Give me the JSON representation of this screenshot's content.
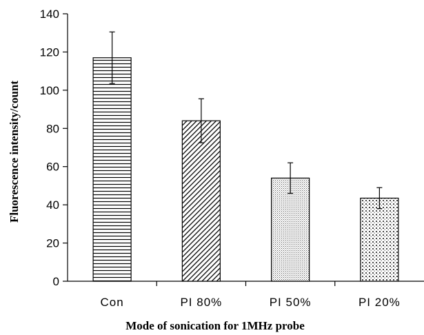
{
  "chart_data": {
    "type": "bar",
    "title": "",
    "xlabel": "Mode of sonication for 1MHz probe",
    "ylabel": "Fluorescence intensity/count",
    "categories": [
      "Con",
      "PI 80%",
      "PI 50%",
      "PI 20%"
    ],
    "values": [
      117,
      84,
      54,
      43.5
    ],
    "errors": [
      13.5,
      11.5,
      8,
      5.5
    ],
    "ylim": [
      0,
      140
    ],
    "yticks": [
      0,
      20,
      40,
      60,
      80,
      100,
      120,
      140
    ],
    "patterns": [
      "horizontal-lines",
      "diagonal-hatch",
      "fine-dots",
      "grid-checker"
    ],
    "grid": false,
    "legend": "none"
  }
}
